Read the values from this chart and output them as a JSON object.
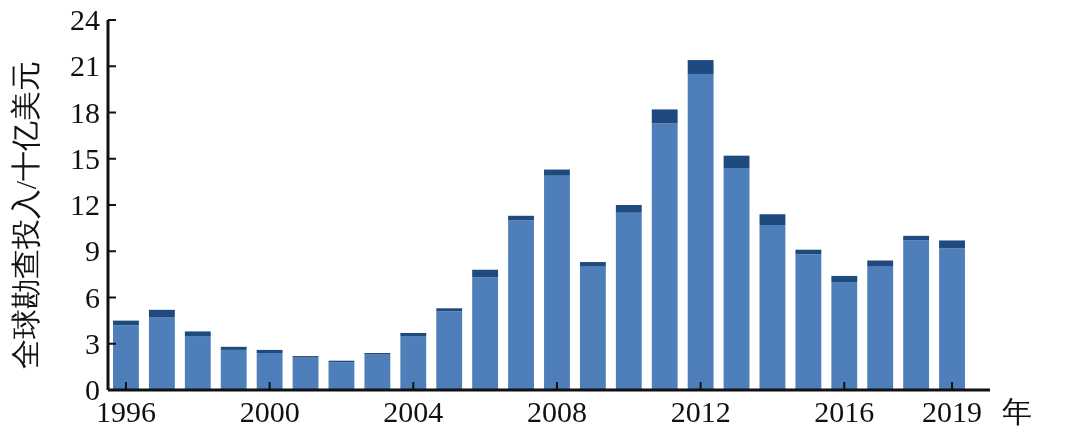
{
  "chart_data": {
    "type": "bar",
    "stacked": true,
    "ylabel": "全球勘查投入/十亿美元",
    "xlabel": "年",
    "categories": [
      "1996",
      null,
      null,
      null,
      "2000",
      null,
      null,
      null,
      "2004",
      null,
      null,
      null,
      "2008",
      null,
      null,
      null,
      "2012",
      null,
      null,
      null,
      "2016",
      null,
      null,
      "2019"
    ],
    "series": [
      {
        "color": "#4f7fbb",
        "values": [
          4.2,
          4.7,
          3.5,
          2.6,
          2.4,
          2.1,
          1.8,
          2.3,
          3.5,
          5.1,
          7.3,
          11.0,
          13.9,
          8.0,
          11.5,
          17.3,
          20.5,
          14.4,
          10.7,
          8.8,
          7.0,
          8.0,
          9.7,
          9.2
        ]
      },
      {
        "color": "#1f4a80",
        "values": [
          0.3,
          0.5,
          0.3,
          0.2,
          0.2,
          0.1,
          0.1,
          0.1,
          0.2,
          0.2,
          0.5,
          0.3,
          0.4,
          0.3,
          0.5,
          0.9,
          0.9,
          0.8,
          0.7,
          0.3,
          0.4,
          0.4,
          0.3,
          0.5
        ]
      }
    ],
    "ylim": [
      0,
      24
    ],
    "yticks": [
      0,
      3,
      6,
      9,
      12,
      15,
      18,
      21,
      24
    ]
  }
}
